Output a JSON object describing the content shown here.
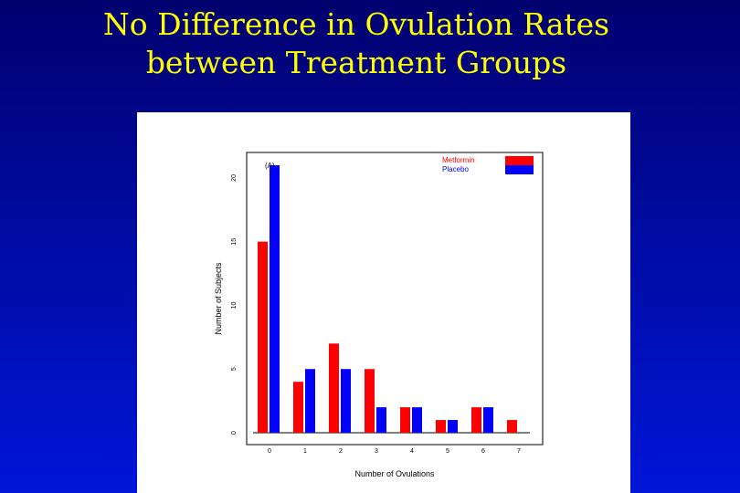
{
  "slide": {
    "title_line1": "No Difference in Ovulation Rates",
    "title_line2": "between Treatment Groups"
  },
  "colors": {
    "metformin": "#ff0000",
    "placebo": "#0000ff",
    "title": "#ffff00",
    "background": "#0010c0"
  },
  "chart_data": {
    "type": "bar",
    "panel_label": "(A)",
    "xlabel": "Number of Ovulations",
    "ylabel": "Number of Subjects",
    "categories": [
      "0",
      "1",
      "2",
      "3",
      "4",
      "5",
      "6",
      "7"
    ],
    "series": [
      {
        "name": "Metformin",
        "color": "#ff0000",
        "values": [
          15,
          4,
          7,
          5,
          2,
          1,
          2,
          1
        ]
      },
      {
        "name": "Placebo",
        "color": "#0000ff",
        "values": [
          21,
          5,
          5,
          2,
          2,
          1,
          2,
          0
        ]
      }
    ],
    "yticks": [
      0,
      5,
      10,
      15,
      20
    ],
    "ylim": [
      0,
      22
    ],
    "legend_position": "top-right",
    "grid": false
  }
}
